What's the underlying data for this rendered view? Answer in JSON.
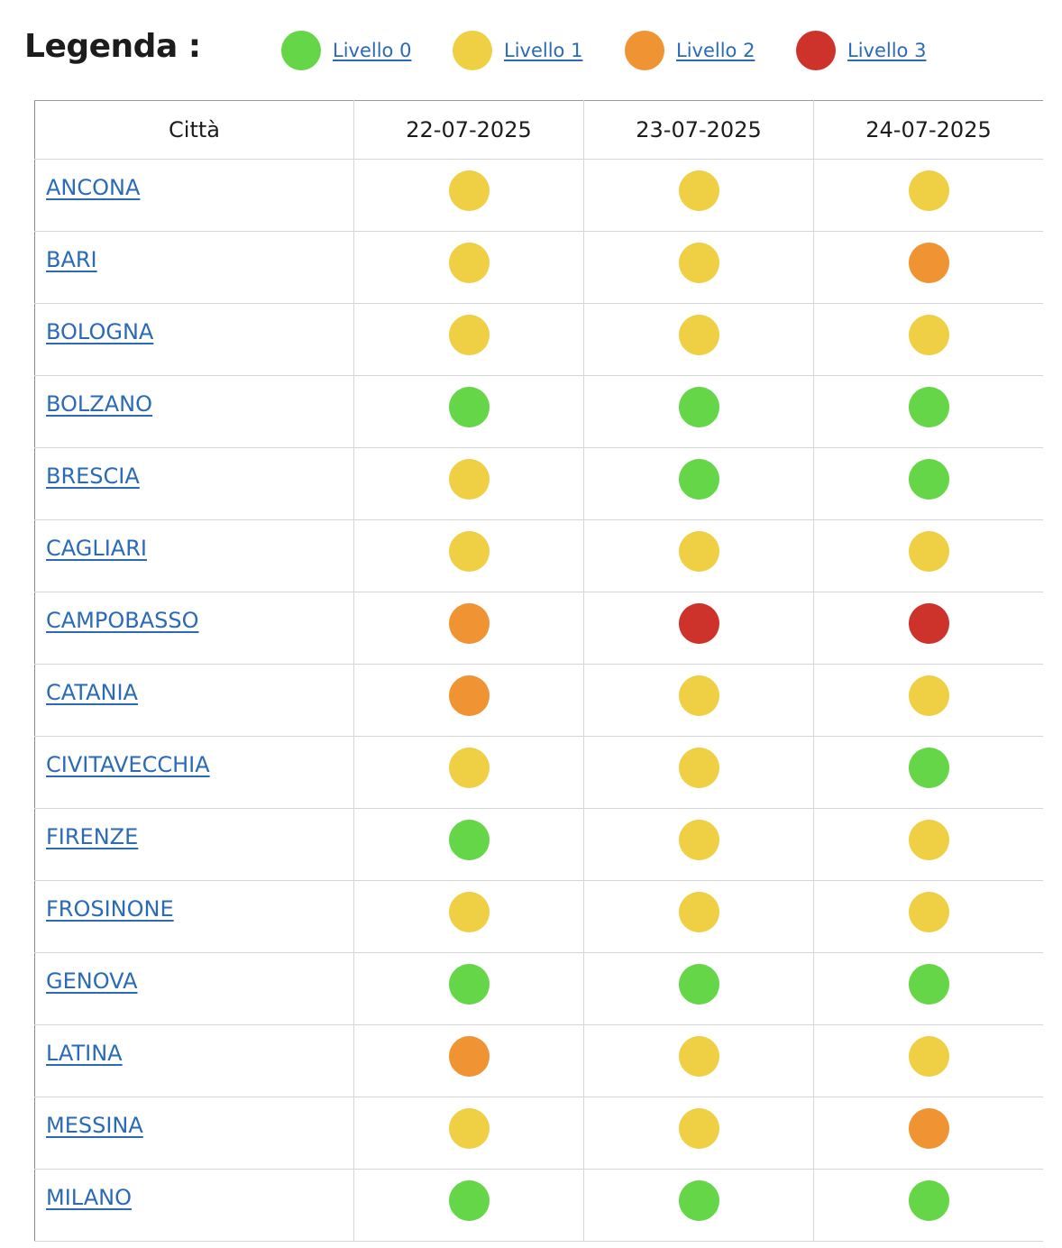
{
  "legend": {
    "title": "Legenda :",
    "levels": [
      {
        "label": "Livello 0",
        "color": "#65d648"
      },
      {
        "label": "Livello 1",
        "color": "#efd045"
      },
      {
        "label": "Livello 2",
        "color": "#f09433"
      },
      {
        "label": "Livello 3",
        "color": "#cd322b"
      }
    ]
  },
  "table": {
    "headers": [
      "Città",
      "22-07-2025",
      "23-07-2025",
      "24-07-2025"
    ],
    "rows": [
      {
        "city": "ANCONA",
        "levels": [
          1,
          1,
          1
        ]
      },
      {
        "city": "BARI",
        "levels": [
          1,
          1,
          2
        ]
      },
      {
        "city": "BOLOGNA",
        "levels": [
          1,
          1,
          1
        ]
      },
      {
        "city": "BOLZANO",
        "levels": [
          0,
          0,
          0
        ]
      },
      {
        "city": "BRESCIA",
        "levels": [
          1,
          0,
          0
        ]
      },
      {
        "city": "CAGLIARI",
        "levels": [
          1,
          1,
          1
        ]
      },
      {
        "city": "CAMPOBASSO",
        "levels": [
          2,
          3,
          3
        ]
      },
      {
        "city": "CATANIA",
        "levels": [
          2,
          1,
          1
        ]
      },
      {
        "city": "CIVITAVECCHIA",
        "levels": [
          1,
          1,
          0
        ]
      },
      {
        "city": "FIRENZE",
        "levels": [
          0,
          1,
          1
        ]
      },
      {
        "city": "FROSINONE",
        "levels": [
          1,
          1,
          1
        ]
      },
      {
        "city": "GENOVA",
        "levels": [
          0,
          0,
          0
        ]
      },
      {
        "city": "LATINA",
        "levels": [
          2,
          1,
          1
        ]
      },
      {
        "city": "MESSINA",
        "levels": [
          1,
          1,
          2
        ]
      },
      {
        "city": "MILANO",
        "levels": [
          0,
          0,
          0
        ]
      }
    ]
  }
}
